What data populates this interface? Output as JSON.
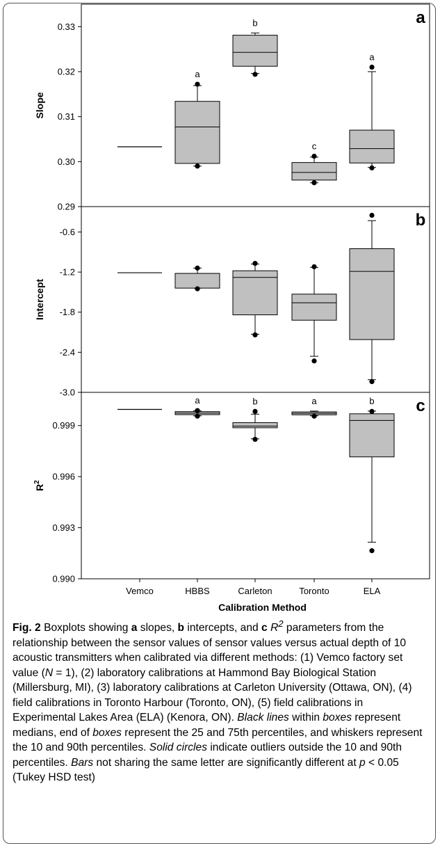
{
  "chart_data": {
    "type": "boxplot",
    "categories": [
      "Vemco",
      "HBBS",
      "Carleton",
      "Toronto",
      "ELA"
    ],
    "xlabel": "Calibration Method",
    "panels": [
      {
        "letter": "a",
        "ylabel": "Slope",
        "ylim": [
          0.29,
          0.335
        ],
        "yticks": [
          "0.29",
          "0.30",
          "0.31",
          "0.32",
          "0.33"
        ],
        "tick_values": [
          0.29,
          0.3,
          0.31,
          0.32,
          0.33
        ],
        "groups": [
          {
            "category": "Vemco",
            "single_value": 0.3033
          },
          {
            "category": "HBBS",
            "p10": 0.299,
            "q1": 0.2996,
            "median": 0.3077,
            "q3": 0.3134,
            "p90": 0.3169,
            "outliers": [
              0.299,
              0.3172
            ],
            "letter": "a"
          },
          {
            "category": "Carleton",
            "p10": 0.3196,
            "q1": 0.3212,
            "median": 0.3243,
            "q3": 0.3281,
            "p90": 0.3286,
            "outliers": [
              0.3194
            ],
            "letter": "b"
          },
          {
            "category": "Toronto",
            "p10": 0.2953,
            "q1": 0.2959,
            "median": 0.2976,
            "q3": 0.2998,
            "p90": 0.301,
            "outliers": [
              0.2953,
              0.3012
            ],
            "letter": "c"
          },
          {
            "category": "ELA",
            "p10": 0.2987,
            "q1": 0.2997,
            "median": 0.3029,
            "q3": 0.307,
            "p90": 0.32,
            "outliers": [
              0.2986,
              0.321
            ],
            "letter": "a"
          }
        ]
      },
      {
        "letter": "b",
        "ylabel": "Intercept",
        "ylim": [
          -3.0,
          -0.22
        ],
        "yticks": [
          "-3.0",
          "-2.4",
          "-1.8",
          "-1.2",
          "-0.6"
        ],
        "tick_values": [
          -3.0,
          -2.4,
          -1.8,
          -1.2,
          -0.6
        ],
        "groups": [
          {
            "category": "Vemco",
            "single_value": -1.21
          },
          {
            "category": "HBBS",
            "p10": -1.44,
            "q1": -1.44,
            "median": -1.22,
            "q3": -1.22,
            "p90": -1.14,
            "outliers": [
              -1.45,
              -1.14
            ]
          },
          {
            "category": "Carleton",
            "p10": -2.13,
            "q1": -1.84,
            "median": -1.28,
            "q3": -1.18,
            "p90": -1.08,
            "outliers": [
              -2.14,
              -1.07
            ]
          },
          {
            "category": "Toronto",
            "p10": -2.46,
            "q1": -1.92,
            "median": -1.66,
            "q3": -1.53,
            "p90": -1.13,
            "outliers": [
              -2.53,
              -1.12
            ]
          },
          {
            "category": "ELA",
            "p10": -2.81,
            "q1": -2.21,
            "median": -1.19,
            "q3": -0.85,
            "p90": -0.43,
            "outliers": [
              -2.84,
              -0.35
            ]
          }
        ]
      },
      {
        "letter": "c",
        "ylabel": "R²",
        "ylim": [
          0.99,
          1.00095
        ],
        "yticks": [
          "0.990",
          "0.993",
          "0.996",
          "0.999"
        ],
        "tick_values": [
          0.99,
          0.993,
          0.996,
          0.999
        ],
        "groups": [
          {
            "category": "Vemco",
            "single_value": 0.99995
          },
          {
            "category": "HBBS",
            "p10": 0.99957,
            "q1": 0.99964,
            "median": 0.99973,
            "q3": 0.99982,
            "p90": 0.99986,
            "outliers": [
              0.99955,
              0.99988
            ],
            "letter": "a"
          },
          {
            "category": "Carleton",
            "p10": 0.99822,
            "q1": 0.99887,
            "median": 0.99897,
            "q3": 0.99917,
            "p90": 0.99967,
            "outliers": [
              0.99819,
              0.99983
            ],
            "letter": "b"
          },
          {
            "category": "Toronto",
            "p10": 0.99957,
            "q1": 0.99963,
            "median": 0.99972,
            "q3": 0.9998,
            "p90": 0.99985,
            "outliers": [
              0.99955
            ],
            "letter": "a"
          },
          {
            "category": "ELA",
            "p10": 0.99215,
            "q1": 0.99716,
            "median": 0.9993,
            "q3": 0.99969,
            "p90": 0.99985,
            "outliers": [
              0.99165,
              0.99983
            ],
            "letter": "b"
          }
        ]
      }
    ]
  },
  "caption": {
    "fig_label": "Fig. 2",
    "text_1": " Boxplots showing ",
    "a": "a",
    "text_2": " slopes, ",
    "b": "b",
    "text_3": " intercepts, and ",
    "c": "c",
    "r2": "R",
    "r2_sup": "2",
    "text_4": " parameters from the relationship between the sensor values of sensor values versus actual depth of 10 acoustic transmitters when calibrated via different methods: (1) Vemco factory set value (",
    "n": "N",
    "text_5": " = 1), (2) laboratory calibrations at Hammond Bay Biological Station (Millersburg, MI), (3) laboratory calibrations at Carleton University (Ottawa, ON), (4) field calibrations in Toronto Harbour (Toronto, ON), (5) field calibrations in Experimental Lakes Area (ELA) (Kenora, ON). ",
    "black_lines": "Black lines",
    "text_6": " within ",
    "boxes1": "boxes",
    "text_7": " represent medians, end of ",
    "boxes2": "boxes",
    "text_8": " represent the 25 and 75th percentiles, and whiskers represent the 10 and 90th percentiles. ",
    "solid_circles": "Solid circles",
    "text_9": " indicate outliers outside the 10 and 90th percentiles. ",
    "bars": "Bars",
    "text_10": " not sharing the same letter are significantly different at ",
    "p": "p",
    "text_11": " < 0.05 (Tukey HSD test)"
  }
}
